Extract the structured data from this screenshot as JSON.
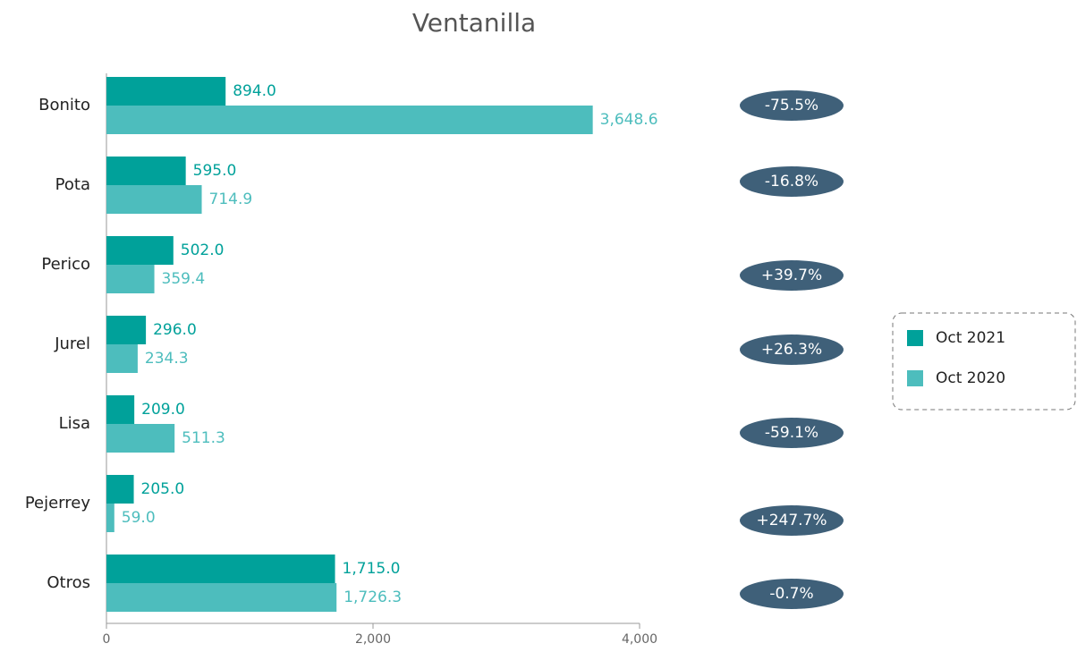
{
  "chart_data": {
    "type": "hbar",
    "title": "Ventanilla",
    "categories": [
      "Bonito",
      "Pota",
      "Perico",
      "Jurel",
      "Lisa",
      "Pejerrey",
      "Otros"
    ],
    "series": [
      {
        "name": "Oct 2021",
        "color": "#00a19a",
        "values": [
          894.0,
          595.0,
          502.0,
          296.0,
          209.0,
          205.0,
          1715.0
        ],
        "value_labels": [
          "894.0",
          "595.0",
          "502.0",
          "296.0",
          "209.0",
          "205.0",
          "1,715.0"
        ]
      },
      {
        "name": "Oct 2020",
        "color": "#4dbdbd",
        "values": [
          3648.6,
          714.9,
          359.4,
          234.3,
          511.3,
          59.0,
          1726.3
        ],
        "value_labels": [
          "3,648.6",
          "714.9",
          "359.4",
          "234.3",
          "511.3",
          "59.0",
          "1,726.3"
        ]
      }
    ],
    "annotations": [
      "-75.5%",
      "-16.8%",
      "+39.7%",
      "+26.3%",
      "-59.1%",
      "+247.7%",
      "-0.7%"
    ],
    "xlim": [
      0,
      4000
    ],
    "xticks": [
      0,
      {
        "value": 2000,
        "label": "2,000"
      },
      {
        "value": 4000,
        "label": "4,000"
      }
    ],
    "legend": "right"
  }
}
